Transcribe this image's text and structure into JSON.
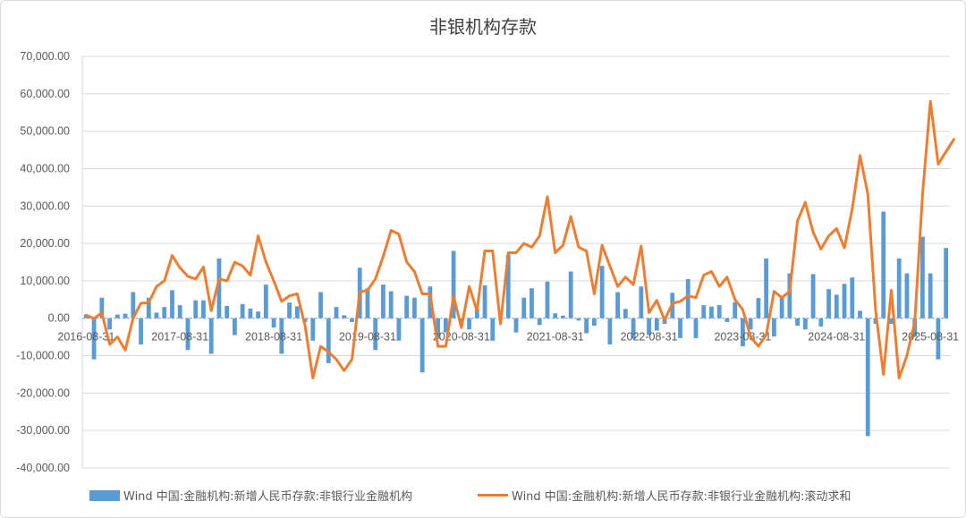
{
  "chart_data": {
    "type": "bar+line",
    "title": "非银机构存款",
    "ylim": [
      -40000,
      70000
    ],
    "yticks": [
      "70,000.00",
      "60,000.00",
      "50,000.00",
      "40,000.00",
      "30,000.00",
      "20,000.00",
      "10,000.00",
      "0.00",
      "-10,000.00",
      "-20,000.00",
      "-30,000.00",
      "-40,000.00"
    ],
    "ytick_values": [
      70000,
      60000,
      50000,
      40000,
      30000,
      20000,
      10000,
      0,
      -10000,
      -20000,
      -30000,
      -40000
    ],
    "xtick_labels": [
      "2016-08-31",
      "2017-08-31",
      "2018-08-31",
      "2019-08-31",
      "2020-08-31",
      "2021-08-31",
      "2022-08-31",
      "2023-08-31",
      "2024-08-31",
      "2025-08-31"
    ],
    "xtick_index": [
      0,
      12,
      24,
      36,
      48,
      60,
      72,
      84,
      96,
      108
    ],
    "legend_position": "bottom",
    "series": [
      {
        "name": "Wind 中国:金融机构:新增人民币存款:非银行业金融机构",
        "kind": "bar",
        "color": "#5b9bd5",
        "values": [
          1000,
          -11000,
          5500,
          -3000,
          1000,
          1200,
          7000,
          -7000,
          5500,
          1500,
          3000,
          7500,
          3500,
          -8500,
          4800,
          4800,
          -9500,
          16000,
          3300,
          -4500,
          3800,
          2600,
          1800,
          9000,
          -2500,
          -9500,
          4200,
          3200,
          -1000,
          -6000,
          7000,
          -12000,
          3000,
          800,
          -1000,
          13500,
          8000,
          -8500,
          9000,
          7200,
          -6000,
          6000,
          5500,
          -14500,
          8500,
          -5500,
          -3800,
          18000,
          -2000,
          -3000,
          2500,
          8800,
          -6000,
          -500,
          17000,
          -3800,
          5500,
          8000,
          -1800,
          9800,
          1300,
          700,
          12500,
          -600,
          -4000,
          -2000,
          14000,
          -7000,
          7000,
          2500,
          -5500,
          8500,
          -4500,
          -3300,
          -1500,
          6800,
          -5300,
          10500,
          -5300,
          3500,
          3100,
          3500,
          -1000,
          4300,
          -7500,
          -3000,
          5400,
          16000,
          -4900,
          5700,
          12000,
          -2000,
          -3000,
          11800,
          -2200,
          7800,
          6300,
          9200,
          10900,
          2000,
          -31500,
          -1500,
          28500,
          -1500,
          16000,
          12000,
          -5000,
          21800,
          12000,
          -11000,
          18800
        ]
      },
      {
        "name": "Wind 中国:金融机构:新增人民币存款:非银行业金融机构:滚动求和",
        "kind": "line",
        "color": "#ed7d31",
        "values": [
          800,
          -100,
          1500,
          -7000,
          -5000,
          -8500,
          0,
          4000,
          4200,
          8500,
          10000,
          16800,
          13500,
          11200,
          10500,
          13700,
          2000,
          10500,
          10000,
          15000,
          14000,
          11500,
          22000,
          15000,
          10000,
          4500,
          6000,
          6500,
          -2000,
          -16000,
          -7500,
          -9000,
          -11000,
          -14000,
          -11000,
          7000,
          7500,
          10500,
          16500,
          23500,
          22500,
          15000,
          12500,
          6500,
          6500,
          -7500,
          -7500,
          6000,
          -2500,
          8500,
          2000,
          18000,
          18000,
          -1500,
          17500,
          17500,
          20000,
          19000,
          22000,
          32500,
          17500,
          19500,
          27200,
          19000,
          18000,
          6500,
          19500,
          14000,
          8500,
          11000,
          9000,
          19300,
          1500,
          4800,
          -500,
          4000,
          4500,
          6000,
          5500,
          11500,
          12500,
          8500,
          11000,
          5000,
          2300,
          -5000,
          -7500,
          -4500,
          7200,
          5500,
          7200,
          26000,
          31000,
          23000,
          18500,
          22000,
          24000,
          18800,
          29200,
          43500,
          33300,
          2000,
          -15000,
          7500,
          -16000,
          -10000,
          -1000,
          33000,
          58000,
          41200,
          44500,
          47800
        ]
      }
    ]
  }
}
